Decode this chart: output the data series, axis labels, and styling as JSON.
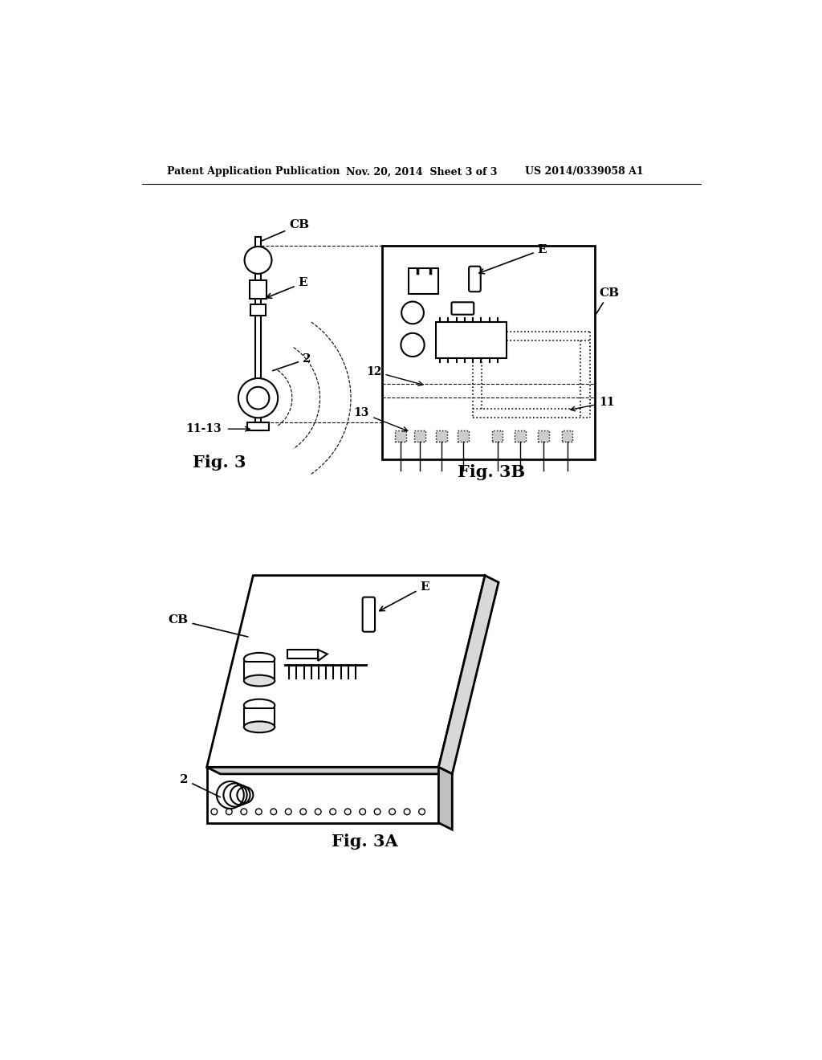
{
  "title_left": "Patent Application Publication",
  "title_mid": "Nov. 20, 2014  Sheet 3 of 3",
  "title_right": "US 2014/0339058 A1",
  "fig3_label": "Fig. 3",
  "fig3b_label": "Fig. 3B",
  "fig3a_label": "Fig. 3A",
  "bg_color": "#ffffff",
  "line_color": "#000000",
  "gray_color": "#888888",
  "light_gray": "#cccccc"
}
